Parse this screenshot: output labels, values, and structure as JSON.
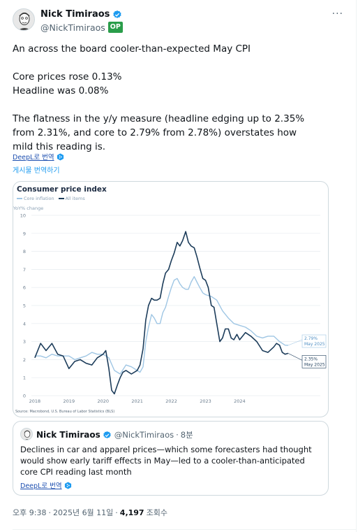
{
  "author": {
    "name": "Nick Timiraos",
    "handle": "@NickTimiraos",
    "badge": "OP",
    "more": "···"
  },
  "tweet": {
    "line1": "An across the board cooler-than-expected May CPI",
    "line2": "Core prices rose 0.13%",
    "line3": "Headline was 0.08%",
    "line4": "The flatness in the y/y measure (headline edging up to 2.35% from 2.31%, and core to 2.79% from 2.78%) overstates how mild this reading is."
  },
  "translate": {
    "deepl_label": "DeepL로 번역",
    "post_translate": "게시물 번역하기"
  },
  "chart_data": {
    "type": "line",
    "title": "Consumer price index",
    "ylabel": "YoY% change",
    "source": "Source: Macrobond, U.S. Bureau of Labor Statistics (BLS)",
    "ylim": [
      0,
      10
    ],
    "yticks": [
      0,
      1,
      2,
      3,
      4,
      5,
      6,
      7,
      8,
      9,
      10
    ],
    "xlim": [
      2017.9,
      2025.75
    ],
    "xticks": [
      {
        "label": "2018",
        "x": 2018.0
      },
      {
        "label": "2019",
        "x": 2019.0
      },
      {
        "label": "2020",
        "x": 2020.0
      },
      {
        "label": "2021",
        "x": 2021.0
      },
      {
        "label": "2022",
        "x": 2022.0
      },
      {
        "label": "2023",
        "x": 2023.0
      },
      {
        "label": "2024",
        "x": 2024.0
      }
    ],
    "series": [
      {
        "name": "Core inflation",
        "color": "#9fc6e4",
        "x": [
          2018.0,
          2018.17,
          2018.33,
          2018.5,
          2018.67,
          2018.83,
          2019.0,
          2019.17,
          2019.33,
          2019.5,
          2019.67,
          2019.83,
          2020.0,
          2020.17,
          2020.33,
          2020.5,
          2020.67,
          2020.83,
          2021.0,
          2021.08,
          2021.17,
          2021.25,
          2021.33,
          2021.42,
          2021.5,
          2021.58,
          2021.67,
          2021.75,
          2021.83,
          2021.92,
          2022.0,
          2022.08,
          2022.17,
          2022.25,
          2022.33,
          2022.42,
          2022.5,
          2022.58,
          2022.67,
          2022.75,
          2022.83,
          2022.92,
          2023.0,
          2023.17,
          2023.33,
          2023.5,
          2023.67,
          2023.83,
          2024.0,
          2024.17,
          2024.33,
          2024.5,
          2024.67,
          2024.83,
          2025.0,
          2025.17,
          2025.33,
          2025.42
        ],
        "y": [
          2.2,
          2.2,
          2.1,
          2.3,
          2.2,
          2.2,
          2.2,
          2.0,
          2.1,
          2.2,
          2.4,
          2.3,
          2.3,
          2.1,
          1.4,
          1.2,
          1.7,
          1.6,
          1.4,
          1.3,
          1.6,
          3.0,
          3.8,
          4.5,
          4.3,
          4.0,
          4.0,
          4.6,
          4.9,
          5.5,
          6.0,
          6.4,
          6.5,
          6.2,
          6.0,
          5.9,
          5.9,
          6.3,
          6.6,
          6.3,
          6.0,
          5.7,
          5.6,
          5.5,
          5.3,
          4.7,
          4.3,
          4.0,
          3.9,
          3.8,
          3.6,
          3.3,
          3.2,
          3.3,
          3.3,
          3.0,
          2.8,
          2.79
        ]
      },
      {
        "name": "All items",
        "color": "#1c3c5a",
        "x": [
          2018.0,
          2018.17,
          2018.33,
          2018.5,
          2018.67,
          2018.83,
          2019.0,
          2019.17,
          2019.33,
          2019.5,
          2019.67,
          2019.83,
          2020.0,
          2020.08,
          2020.17,
          2020.25,
          2020.33,
          2020.42,
          2020.5,
          2020.58,
          2020.67,
          2020.83,
          2021.0,
          2021.08,
          2021.17,
          2021.25,
          2021.33,
          2021.42,
          2021.5,
          2021.58,
          2021.67,
          2021.75,
          2021.83,
          2021.92,
          2022.0,
          2022.08,
          2022.17,
          2022.25,
          2022.33,
          2022.42,
          2022.5,
          2022.58,
          2022.67,
          2022.75,
          2022.83,
          2022.92,
          2023.0,
          2023.08,
          2023.17,
          2023.25,
          2023.33,
          2023.42,
          2023.5,
          2023.58,
          2023.67,
          2023.75,
          2023.83,
          2023.92,
          2024.0,
          2024.17,
          2024.33,
          2024.5,
          2024.67,
          2024.83,
          2025.0,
          2025.08,
          2025.17,
          2025.25,
          2025.33,
          2025.42
        ],
        "y": [
          2.1,
          2.9,
          2.5,
          2.9,
          2.3,
          2.2,
          1.5,
          1.9,
          2.0,
          1.8,
          1.7,
          2.1,
          2.3,
          2.5,
          1.5,
          0.3,
          0.1,
          0.6,
          1.0,
          1.3,
          1.4,
          1.2,
          1.4,
          1.7,
          2.6,
          4.2,
          5.0,
          5.4,
          5.3,
          5.3,
          5.4,
          6.2,
          6.8,
          7.0,
          7.5,
          7.9,
          8.5,
          8.3,
          8.6,
          9.1,
          8.5,
          8.3,
          8.2,
          7.7,
          7.1,
          6.5,
          6.4,
          6.0,
          5.0,
          4.9,
          4.0,
          3.0,
          3.2,
          3.7,
          3.7,
          3.2,
          3.1,
          3.4,
          3.1,
          3.5,
          3.3,
          3.0,
          2.5,
          2.4,
          2.7,
          2.9,
          2.8,
          2.4,
          2.3,
          2.35
        ]
      }
    ],
    "end_labels": [
      {
        "line1": "2.79%",
        "line2": "May 2025"
      },
      {
        "line1": "2.35%",
        "line2": "May 2025"
      }
    ]
  },
  "quote": {
    "name": "Nick Timiraos",
    "handle": "@NickTimiraos",
    "dot": "·",
    "time": "8분",
    "text": "Declines in car and apparel prices—which some forecasters had thought would show early tariff effects in May—led to a cooler-than-anticipated core CPI reading last month",
    "deepl_label": "DeepL로 번역"
  },
  "meta": {
    "time": "오후 9:38",
    "sep": "·",
    "date": "2025년 6월 11일",
    "views": "4,197",
    "views_label": "조회수"
  }
}
